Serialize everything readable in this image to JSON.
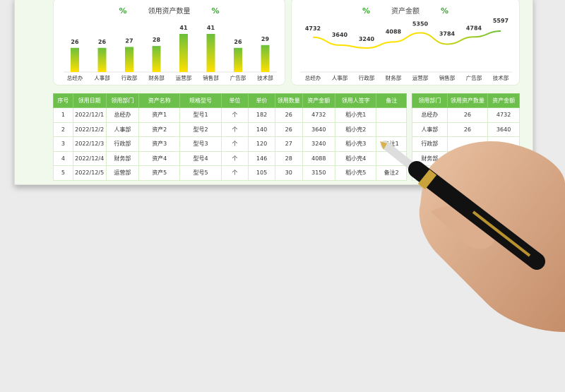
{
  "charts": [
    {
      "type": "bar",
      "title": "领用资产数量",
      "categories": [
        "总经办",
        "人事部",
        "行政部",
        "财务部",
        "运营部",
        "销售部",
        "广告部",
        "技术部"
      ],
      "values": [
        26,
        26,
        27,
        28,
        41,
        41,
        26,
        29
      ],
      "colors": {
        "top": "#6cbf3c",
        "bottom": "#ffe000"
      }
    },
    {
      "type": "line",
      "title": "资产金额",
      "categories": [
        "总经办",
        "人事部",
        "行政部",
        "财务部",
        "运营部",
        "销售部",
        "广告部",
        "技术部"
      ],
      "values": [
        4732,
        3640,
        3240,
        4088,
        5350,
        3784,
        4784,
        5597
      ],
      "colors": {
        "start": "#ffe000",
        "end": "#6cbf3c"
      }
    }
  ],
  "percent_icon": "%",
  "table": {
    "headers": [
      "序号",
      "领用日期",
      "领用部门",
      "资产名称",
      "规格型号",
      "单位",
      "单价",
      "领用数量",
      "资产金额",
      "领用人签字",
      "备注"
    ],
    "rows": [
      [
        "1",
        "2022/12/1",
        "总经办",
        "资产1",
        "型号1",
        "个",
        "182",
        "26",
        "4732",
        "稻小壳1",
        ""
      ],
      [
        "2",
        "2022/12/2",
        "人事部",
        "资产2",
        "型号2",
        "个",
        "140",
        "26",
        "3640",
        "稻小壳2",
        ""
      ],
      [
        "3",
        "2022/12/3",
        "行政部",
        "资产3",
        "型号3",
        "个",
        "120",
        "27",
        "3240",
        "稻小壳3",
        "备注1"
      ],
      [
        "4",
        "2022/12/4",
        "财务部",
        "资产4",
        "型号4",
        "个",
        "146",
        "28",
        "4088",
        "稻小壳4",
        ""
      ],
      [
        "5",
        "2022/12/5",
        "运营部",
        "资产5",
        "型号5",
        "个",
        "105",
        "30",
        "3150",
        "稻小壳5",
        "备注2"
      ]
    ]
  },
  "summary": {
    "headers": [
      "领用部门",
      "领用资产数量",
      "资产金额"
    ],
    "rows": [
      [
        "总经办",
        "26",
        "4732"
      ],
      [
        "人事部",
        "26",
        "3640"
      ],
      [
        "行政部",
        "",
        ""
      ],
      [
        "财务部",
        "",
        ""
      ],
      [
        "",
        "",
        ""
      ]
    ]
  },
  "accent": "#6cbf4b"
}
